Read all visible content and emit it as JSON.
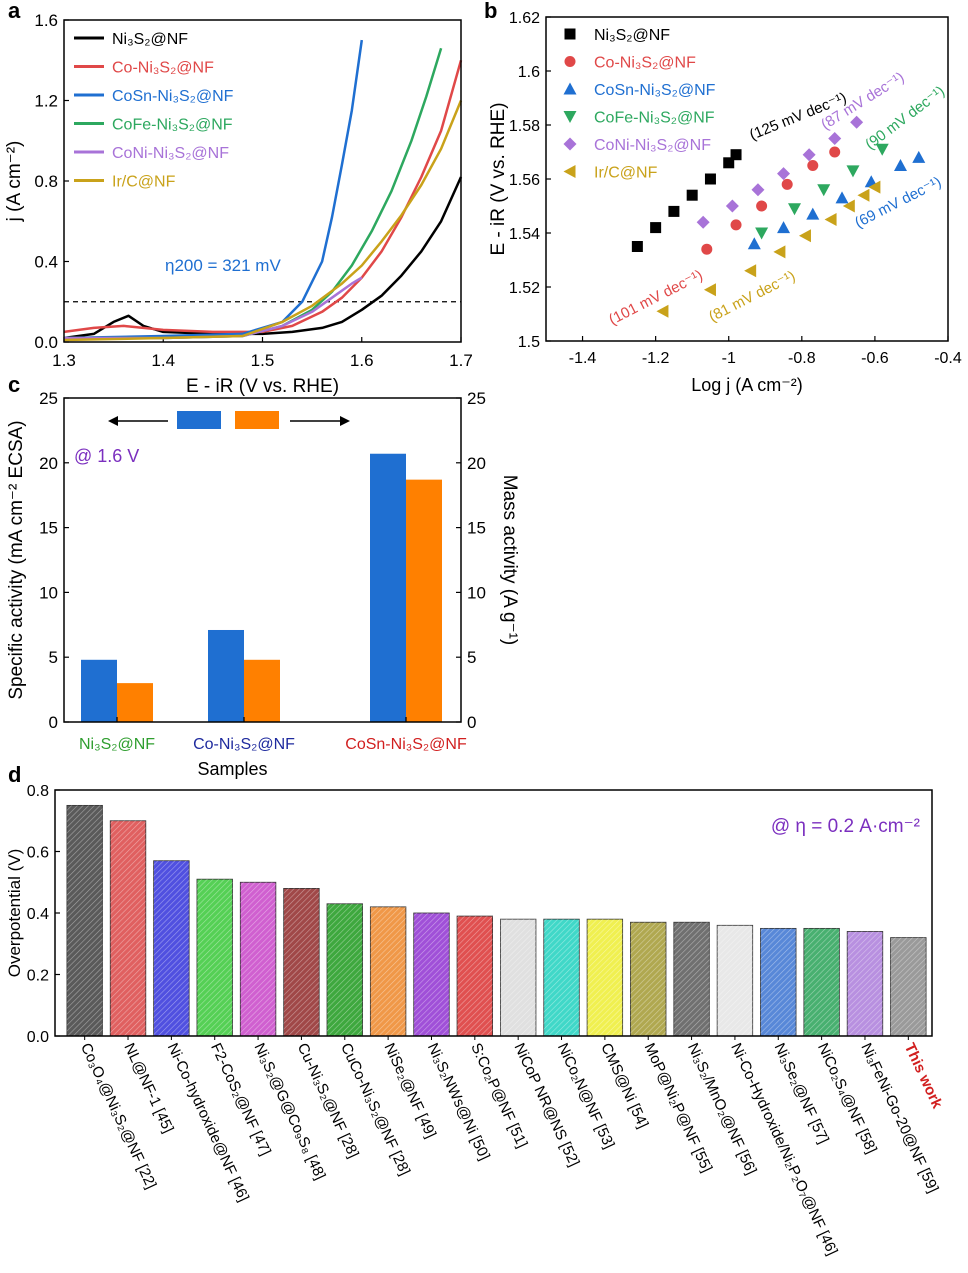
{
  "panels": {
    "a": "a",
    "b": "b",
    "c": "c",
    "d": "d"
  },
  "colors": {
    "ni3s2": "#000000",
    "co": "#e04848",
    "cosn": "#1f6fd1",
    "cofe": "#2da85f",
    "coni": "#a873d8",
    "irc": "#c9a21a",
    "dashed": "#000000",
    "annot_purple": "#7b2fbf",
    "this_work": "#d11f1f",
    "label_green": "#2f9e2f",
    "label_navy": "#1e2a9e",
    "label_red": "#d11f1f"
  },
  "chart_data": [
    {
      "panel": "a",
      "type": "line",
      "xlabel": "E - iR (V vs. RHE)",
      "ylabel": "j (A cm⁻²)",
      "xlim": [
        1.3,
        1.7
      ],
      "ylim": [
        0,
        1.6
      ],
      "xticks": [
        "1.3",
        "1.4",
        "1.5",
        "1.6",
        "1.7"
      ],
      "yticks": [
        "0.0",
        "0.4",
        "0.8",
        "1.2",
        "1.6"
      ],
      "reference_line_y": 0.2,
      "annotation": "η200 = 321 mV",
      "series": [
        {
          "name": "Ni3S2@NF",
          "label": "Ni₃S₂@NF",
          "color_key": "ni3s2",
          "x": [
            1.3,
            1.33,
            1.35,
            1.365,
            1.38,
            1.4,
            1.45,
            1.5,
            1.53,
            1.56,
            1.58,
            1.6,
            1.62,
            1.64,
            1.66,
            1.68,
            1.7
          ],
          "y": [
            0.02,
            0.04,
            0.1,
            0.13,
            0.08,
            0.05,
            0.04,
            0.04,
            0.05,
            0.07,
            0.1,
            0.16,
            0.23,
            0.33,
            0.45,
            0.6,
            0.82
          ]
        },
        {
          "name": "Co-Ni3S2@NF",
          "label": "Co-Ni₃S₂@NF",
          "color_key": "co",
          "x": [
            1.3,
            1.33,
            1.36,
            1.4,
            1.45,
            1.5,
            1.53,
            1.56,
            1.58,
            1.6,
            1.62,
            1.64,
            1.66,
            1.68,
            1.7
          ],
          "y": [
            0.05,
            0.07,
            0.08,
            0.06,
            0.05,
            0.05,
            0.08,
            0.15,
            0.22,
            0.32,
            0.45,
            0.62,
            0.82,
            1.05,
            1.4
          ]
        },
        {
          "name": "CoSn-Ni3S2@NF",
          "label": "CoSn-Ni₃S₂@NF",
          "color_key": "cosn",
          "x": [
            1.3,
            1.4,
            1.48,
            1.52,
            1.54,
            1.56,
            1.57,
            1.58,
            1.59,
            1.6
          ],
          "y": [
            0.02,
            0.03,
            0.04,
            0.1,
            0.2,
            0.4,
            0.62,
            0.88,
            1.15,
            1.5
          ]
        },
        {
          "name": "CoFe-Ni3S2@NF",
          "label": "CoFe-Ni₃S₂@NF",
          "color_key": "cofe",
          "x": [
            1.3,
            1.4,
            1.48,
            1.52,
            1.55,
            1.57,
            1.59,
            1.61,
            1.63,
            1.65,
            1.665,
            1.68
          ],
          "y": [
            0.02,
            0.02,
            0.03,
            0.08,
            0.16,
            0.25,
            0.38,
            0.55,
            0.75,
            1.0,
            1.22,
            1.46
          ]
        },
        {
          "name": "CoNi-Ni3S2@NF",
          "label": "CoNi-Ni₃S₂@NF",
          "color_key": "coni",
          "x": [
            1.3,
            1.4,
            1.48,
            1.52,
            1.55,
            1.57,
            1.59,
            1.6
          ],
          "y": [
            0.02,
            0.02,
            0.03,
            0.08,
            0.15,
            0.22,
            0.29,
            0.32
          ]
        },
        {
          "name": "Ir/C@NF",
          "label": "Ir/C@NF",
          "color_key": "irc",
          "x": [
            1.3,
            1.4,
            1.48,
            1.52,
            1.55,
            1.58,
            1.6,
            1.62,
            1.64,
            1.66,
            1.68,
            1.7
          ],
          "y": [
            0.01,
            0.02,
            0.03,
            0.1,
            0.18,
            0.29,
            0.38,
            0.5,
            0.63,
            0.78,
            0.96,
            1.2
          ]
        }
      ]
    },
    {
      "panel": "b",
      "type": "scatter",
      "xlabel": "Log j (A cm⁻²)",
      "ylabel": "E - iR (V vs. RHE)",
      "xlim": [
        -1.5,
        -0.4
      ],
      "ylim": [
        1.5,
        1.62
      ],
      "xticks": [
        "-1.4",
        "-1.2",
        "-1",
        "-0.8",
        "-0.6",
        "-0.4"
      ],
      "yticks": [
        "1.5",
        "1.52",
        "1.54",
        "1.56",
        "1.58",
        "1.6",
        "1.62"
      ],
      "series": [
        {
          "name": "Ni3S2@NF",
          "label": "Ni₃S₂@NF",
          "marker": "square",
          "color_key": "ni3s2",
          "tafel": "(125 mV dec⁻¹)",
          "x": [
            -1.25,
            -1.2,
            -1.15,
            -1.1,
            -1.05,
            -1.0,
            -0.98
          ],
          "y": [
            1.535,
            1.542,
            1.548,
            1.554,
            1.56,
            1.566,
            1.569
          ]
        },
        {
          "name": "Co-Ni3S2@NF",
          "label": "Co-Ni₃S₂@NF",
          "marker": "circle",
          "color_key": "co",
          "tafel": "(101 mV dec⁻¹)",
          "x": [
            -1.06,
            -0.98,
            -0.91,
            -0.84,
            -0.77,
            -0.71
          ],
          "y": [
            1.534,
            1.543,
            1.55,
            1.558,
            1.565,
            1.57
          ]
        },
        {
          "name": "CoSn-Ni3S2@NF",
          "label": "CoSn-Ni₃S₂@NF",
          "marker": "triangle-up",
          "color_key": "cosn",
          "tafel": "(69 mV dec⁻¹)",
          "x": [
            -0.93,
            -0.85,
            -0.77,
            -0.69,
            -0.61,
            -0.53,
            -0.48
          ],
          "y": [
            1.536,
            1.542,
            1.547,
            1.553,
            1.559,
            1.565,
            1.568
          ]
        },
        {
          "name": "CoFe-Ni3S2@NF",
          "label": "CoFe-Ni₃S₂@NF",
          "marker": "triangle-down",
          "color_key": "cofe",
          "tafel": "(90 mV dec⁻¹)",
          "x": [
            -0.91,
            -0.82,
            -0.74,
            -0.66,
            -0.58
          ],
          "y": [
            1.54,
            1.549,
            1.556,
            1.563,
            1.571
          ]
        },
        {
          "name": "CoNi-Ni3S2@NF",
          "label": "CoNi-Ni₃S₂@NF",
          "marker": "diamond",
          "color_key": "coni",
          "tafel": "(87 mV dec⁻¹)",
          "x": [
            -1.07,
            -0.99,
            -0.92,
            -0.85,
            -0.78,
            -0.71,
            -0.65
          ],
          "y": [
            1.544,
            1.55,
            1.556,
            1.562,
            1.569,
            1.575,
            1.581
          ]
        },
        {
          "name": "Ir/C@NF",
          "label": "Ir/C@NF",
          "marker": "triangle-left",
          "color_key": "irc",
          "tafel": "(81 mV dec⁻¹)",
          "x": [
            -1.18,
            -1.05,
            -0.94,
            -0.86,
            -0.79,
            -0.72,
            -0.67,
            -0.63,
            -0.6
          ],
          "y": [
            1.511,
            1.519,
            1.526,
            1.533,
            1.539,
            1.545,
            1.55,
            1.554,
            1.557
          ]
        }
      ]
    },
    {
      "panel": "c",
      "type": "bar",
      "xlabel": "Samples",
      "ylabel_left": "Specific activity (mA cm⁻² ECSA)",
      "ylabel_right": "Mass activity (A g⁻¹)",
      "annotation": "@ 1.6 V",
      "ylim": [
        0,
        25
      ],
      "yticks": [
        "0",
        "5",
        "10",
        "15",
        "20",
        "25"
      ],
      "categories": [
        "Ni₃S₂@NF",
        "Co-Ni₃S₂@NF",
        "CoSn-Ni₃S₂@NF"
      ],
      "category_color_keys": [
        "label_green",
        "label_navy",
        "label_red"
      ],
      "series": [
        {
          "name": "Specific activity",
          "color": "#1f6fd1",
          "values": [
            4.8,
            7.1,
            20.7
          ]
        },
        {
          "name": "Mass activity",
          "color": "#ff8000",
          "values": [
            3.0,
            4.8,
            18.7
          ]
        }
      ]
    },
    {
      "panel": "d",
      "type": "bar",
      "ylabel": "Overpotential (V)",
      "annotation": "@ η = 0.2 A·cm⁻²",
      "ylim": [
        0,
        0.8
      ],
      "yticks": [
        "0.0",
        "0.2",
        "0.4",
        "0.6",
        "0.8"
      ],
      "categories": [
        "Co₃O₄@Ni₃S₂@NF [22]",
        "NL@NF-1 [45]",
        "Ni-Co-hydroxide@NF [46]",
        "F2-CoS₂@NF [47]",
        "Ni₃S₂@G@Co₉S₈ [48]",
        "Cu-Ni₃S₂@NF [28]",
        "CuCo-Ni₃S₂@NF [28]",
        "NiSe₂@NF [49]",
        "Ni₃S₂NWs@Ni [50]",
        "S:Co₂P@NF [51]",
        "NiCoP NR@NS [52]",
        "NiCo₂N@NF [53]",
        "CMS@Ni [54]",
        "MoP@Ni₂P@NF [55]",
        "Ni₃S₂/MnO₂@NF [56]",
        "Ni-Co-Hydroxide/Ni₂P₂O₇@NF [46]",
        "Ni₃Se₂@NF [57]",
        "NiCo₂S₄@NF [58]",
        "Ni₃FeNi-Go-20@NF [59]",
        "This work"
      ],
      "values": [
        0.75,
        0.7,
        0.57,
        0.51,
        0.5,
        0.48,
        0.43,
        0.42,
        0.4,
        0.39,
        0.38,
        0.38,
        0.38,
        0.37,
        0.37,
        0.36,
        0.35,
        0.35,
        0.34,
        0.32
      ],
      "colors": [
        "#5a5a5a",
        "#e06060",
        "#5050e0",
        "#55d055",
        "#d060d0",
        "#a04848",
        "#3ea83e",
        "#f09848",
        "#a050d8",
        "#e05050",
        "#e0e0e0",
        "#40d8c8",
        "#f0f050",
        "#b0a850",
        "#707070",
        "#e8e8e8",
        "#5888d8",
        "#48b070",
        "#b890e0",
        "#9a9a9a"
      ]
    }
  ]
}
